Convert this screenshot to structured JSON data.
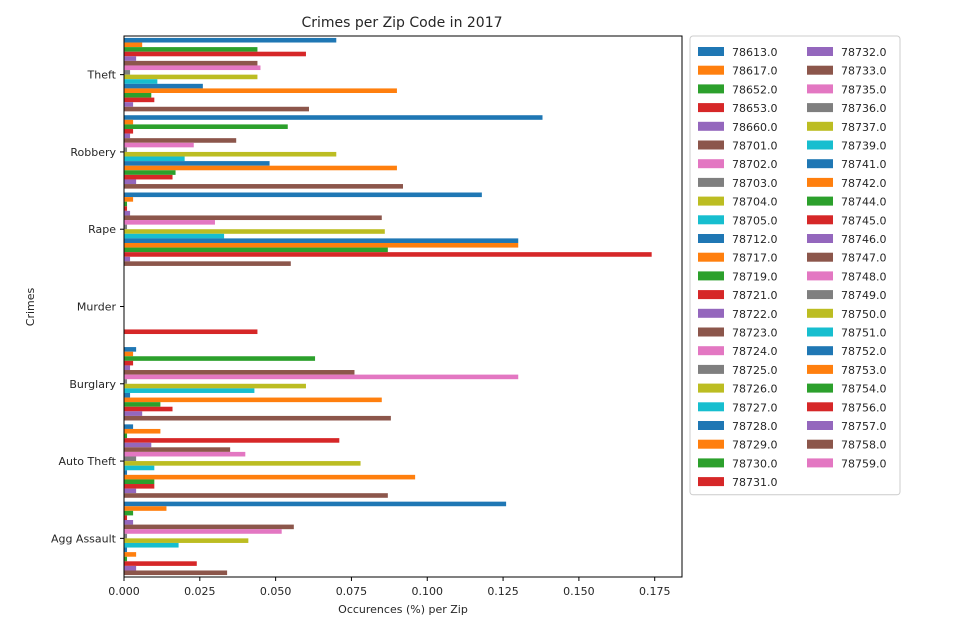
{
  "chart_data": {
    "type": "bar",
    "orientation": "horizontal",
    "title": "Crimes per Zip Code in 2017",
    "xlabel": "Occurences (%) per Zip",
    "ylabel": "Crimes",
    "xlim": [
      0,
      0.184
    ],
    "xticks": [
      "0.000",
      "0.025",
      "0.050",
      "0.075",
      "0.100",
      "0.125",
      "0.150",
      "0.175"
    ],
    "xtick_values": [
      0,
      0.025,
      0.05,
      0.075,
      0.1,
      0.125,
      0.15,
      0.175
    ],
    "categories": [
      "Agg Assault",
      "Auto Theft",
      "Burglary",
      "Murder",
      "Rape",
      "Robbery",
      "Theft"
    ],
    "grid": false,
    "legend_position": "outside-right",
    "legend_columns": 2,
    "series": [
      {
        "name": "78613.0",
        "color": "#1f77b4",
        "values": [
          0.126,
          0.003,
          0.004,
          0,
          0.118,
          0.138,
          0.07
        ]
      },
      {
        "name": "78617.0",
        "color": "#ff7f0e",
        "values": [
          0.014,
          0.012,
          0.003,
          0,
          0.003,
          0.003,
          0.006
        ]
      },
      {
        "name": "78652.0",
        "color": "#2ca02c",
        "values": [
          0.003,
          0.001,
          0.063,
          0,
          0.001,
          0.054,
          0.044
        ]
      },
      {
        "name": "78653.0",
        "color": "#d62728",
        "values": [
          0.001,
          0.071,
          0.003,
          0,
          0.001,
          0.003,
          0.06
        ]
      },
      {
        "name": "78660.0",
        "color": "#9467bd",
        "values": [
          0.003,
          0.009,
          0.002,
          0,
          0.002,
          0.002,
          0.004
        ]
      },
      {
        "name": "78701.0",
        "color": "#8c564b",
        "values": [
          0.056,
          0.035,
          0.076,
          0,
          0.085,
          0.037,
          0.044
        ]
      },
      {
        "name": "78702.0",
        "color": "#e377c2",
        "values": [
          0.052,
          0.04,
          0.13,
          0,
          0.03,
          0.023,
          0.045
        ]
      },
      {
        "name": "78703.0",
        "color": "#7f7f7f",
        "values": [
          0.001,
          0.004,
          0.001,
          0,
          0.001,
          0.001,
          0.002
        ]
      },
      {
        "name": "78704.0",
        "color": "#bcbd22",
        "values": [
          0.041,
          0.078,
          0.06,
          0,
          0.086,
          0.07,
          0.044
        ]
      },
      {
        "name": "78705.0",
        "color": "#17becf",
        "values": [
          0.018,
          0.01,
          0.043,
          0,
          0.033,
          0.02,
          0.011
        ]
      },
      {
        "name": "78712.0",
        "color": "#1f77b4",
        "values": [
          0.001,
          0.001,
          0.002,
          0,
          0.13,
          0.048,
          0.026
        ]
      },
      {
        "name": "78717.0",
        "color": "#ff7f0e",
        "values": [
          0.004,
          0.096,
          0.085,
          0,
          0.13,
          0.09,
          0.09
        ]
      },
      {
        "name": "78719.0",
        "color": "#2ca02c",
        "values": [
          0.001,
          0.01,
          0.012,
          0,
          0.087,
          0.017,
          0.009
        ]
      },
      {
        "name": "78721.0",
        "color": "#d62728",
        "values": [
          0.024,
          0.01,
          0.016,
          0.044,
          0.174,
          0.016,
          0.01
        ]
      },
      {
        "name": "78722.0",
        "color": "#9467bd",
        "values": [
          0.004,
          0.004,
          0.006,
          0,
          0.002,
          0.004,
          0.003
        ]
      },
      {
        "name": "78723.0",
        "color": "#8c564b",
        "values": [
          0.034,
          0.087,
          0.088,
          0,
          0.055,
          0.092,
          0.061
        ]
      }
    ],
    "legend_col2": [
      "78732.0",
      "78733.0",
      "78735.0",
      "78736.0",
      "78737.0",
      "78739.0",
      "78741.0",
      "78742.0",
      "78744.0",
      "78745.0",
      "78746.0",
      "78747.0",
      "78748.0",
      "78749.0",
      "78750.0",
      "78751.0",
      "78752.0",
      "78753.0",
      "78754.0",
      "78756.0",
      "78757.0",
      "78758.0",
      "78759.0"
    ],
    "legend_col1_rest": [
      "78724.0",
      "78725.0",
      "78726.0",
      "78727.0",
      "78728.0",
      "78729.0",
      "78730.0",
      "78731.0"
    ],
    "palette": [
      "#1f77b4",
      "#ff7f0e",
      "#2ca02c",
      "#d62728",
      "#9467bd",
      "#8c564b",
      "#e377c2",
      "#7f7f7f",
      "#bcbd22",
      "#17becf"
    ]
  }
}
